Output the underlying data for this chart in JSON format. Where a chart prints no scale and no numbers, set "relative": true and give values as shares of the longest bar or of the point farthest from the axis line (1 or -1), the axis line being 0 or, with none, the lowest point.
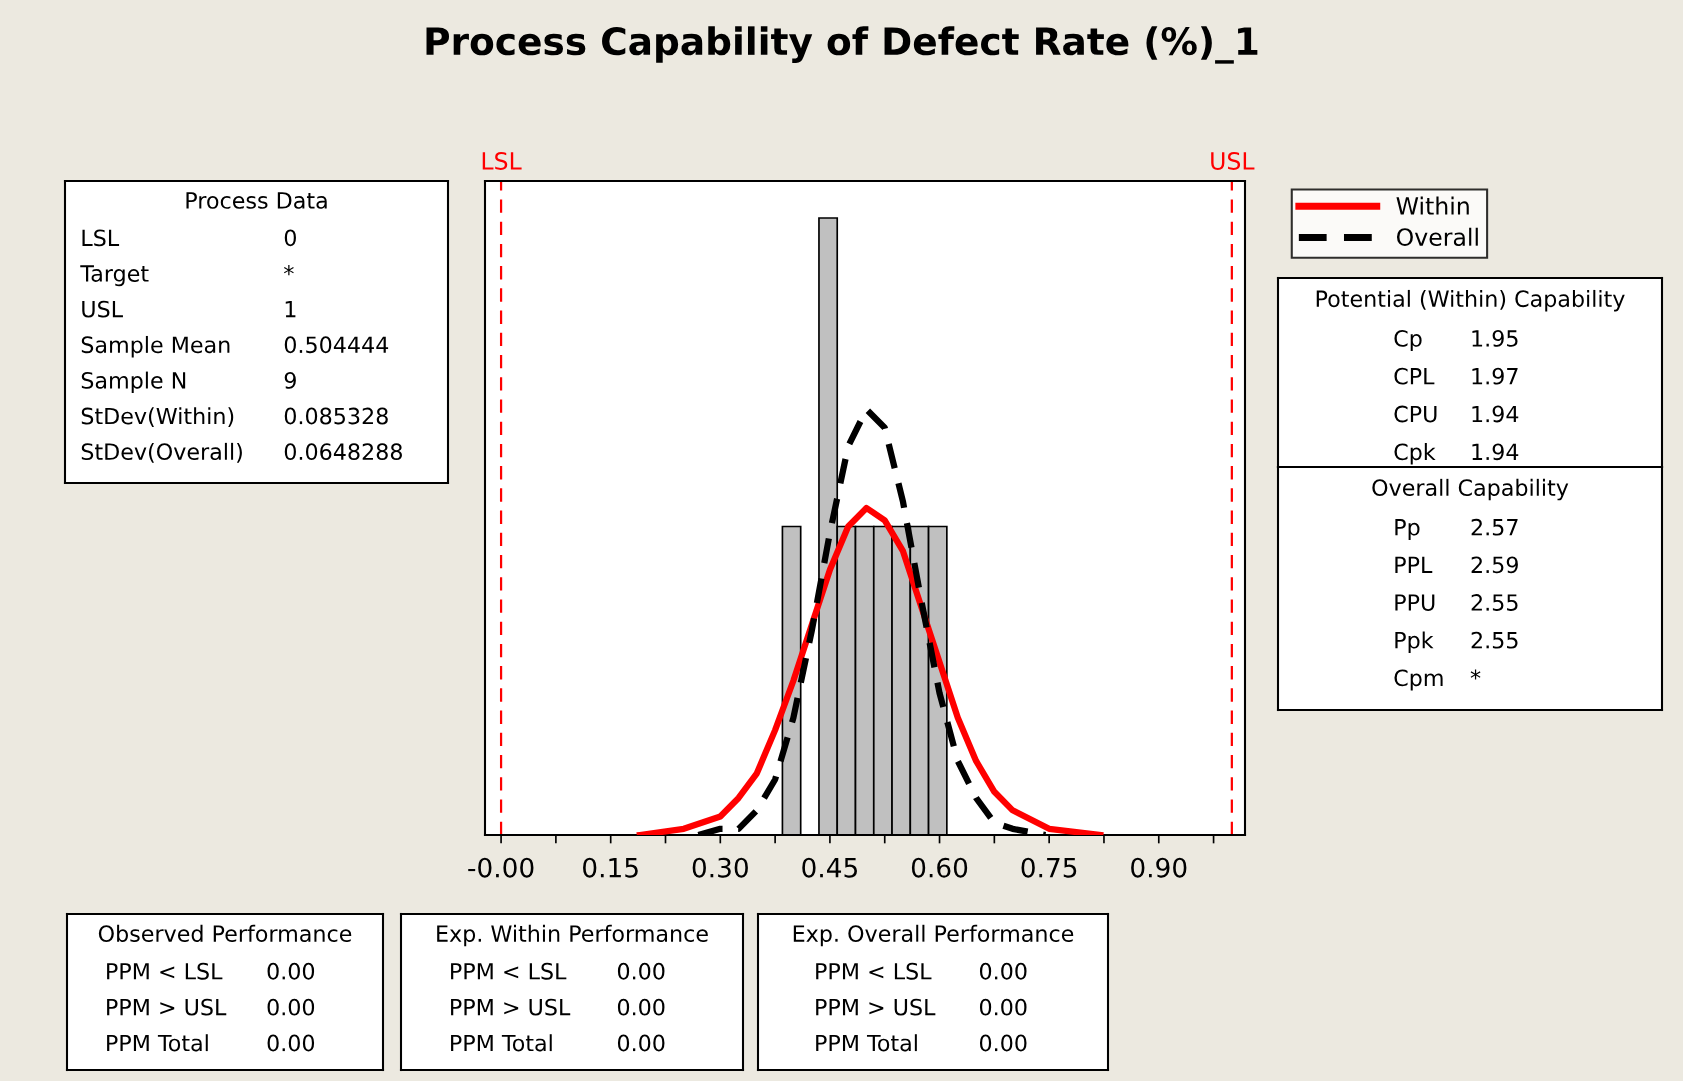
{
  "chart_data": [
    {
      "type": "histogram",
      "title": "Process Capability of Defect Rate (%)_1",
      "relative": true,
      "bins": [
        0.385,
        0.41,
        0.435,
        0.46,
        0.485,
        0.51,
        0.535,
        0.56,
        0.585,
        0.61
      ],
      "values": [
        0.5,
        0,
        1,
        0.5,
        0.5,
        0.5,
        0.5,
        0.5,
        0.5
      ],
      "color": "#c0c0c0",
      "series": [
        {
          "name": "Within",
          "type": "line",
          "color": "#ff0000",
          "line_style": "solid",
          "x": [
            0.19,
            0.25,
            0.3,
            0.325,
            0.35,
            0.375,
            0.4,
            0.425,
            0.45,
            0.475,
            0.5,
            0.525,
            0.55,
            0.575,
            0.6,
            0.625,
            0.65,
            0.675,
            0.7,
            0.75,
            0.82
          ],
          "values": [
            0.0,
            0.01,
            0.03,
            0.06,
            0.1,
            0.17,
            0.25,
            0.34,
            0.43,
            0.5,
            0.53,
            0.51,
            0.46,
            0.37,
            0.28,
            0.19,
            0.12,
            0.07,
            0.04,
            0.01,
            0.0
          ]
        },
        {
          "name": "Overall",
          "type": "line",
          "color": "#000000",
          "line_style": "dashed",
          "x": [
            0.27,
            0.3,
            0.325,
            0.35,
            0.375,
            0.4,
            0.425,
            0.45,
            0.475,
            0.5,
            0.525,
            0.55,
            0.575,
            0.6,
            0.625,
            0.65,
            0.675,
            0.7,
            0.745
          ],
          "values": [
            0.0,
            0.01,
            0.01,
            0.04,
            0.09,
            0.19,
            0.33,
            0.49,
            0.63,
            0.69,
            0.66,
            0.54,
            0.38,
            0.23,
            0.12,
            0.06,
            0.02,
            0.01,
            0.0
          ]
        }
      ],
      "xlim": [
        -0.022,
        1.018
      ],
      "xticks": [
        {
          "value": 0,
          "label": "-0.00"
        },
        {
          "value": 0.075,
          "label": null
        },
        0.15,
        {
          "value": 0.225,
          "label": null
        },
        {
          "value": 0.3,
          "label": "0.30"
        },
        {
          "value": 0.375,
          "label": null
        },
        0.45,
        {
          "value": 0.525,
          "label": null
        },
        {
          "value": 0.6,
          "label": "0.60"
        },
        {
          "value": 0.675,
          "label": null
        },
        0.75,
        {
          "value": 0.825,
          "label": null
        },
        {
          "value": 0.9,
          "label": "0.90"
        },
        {
          "value": 0.975,
          "label": null
        }
      ],
      "ref_lines": [
        {
          "axis": "x",
          "value": 0,
          "label": "LSL",
          "color": "#ff0000",
          "line_style": "dashed"
        },
        {
          "axis": "x",
          "value": 1,
          "label": "USL",
          "color": "#ff0000",
          "line_style": "dashed"
        }
      ],
      "legend": "top right",
      "grid": false
    },
    {
      "type": "other",
      "title": "Process Data",
      "annotations": [
        "LSL",
        "0",
        "Target",
        "*",
        "USL",
        "1",
        "Sample Mean",
        "0.504444",
        "Sample N",
        "9",
        "StDev(Within)",
        "0.085328",
        "StDev(Overall)",
        "0.0648288"
      ]
    },
    {
      "type": "other",
      "title": "Potential (Within) Capability",
      "annotations": [
        "Cp",
        "1.95",
        "CPL",
        "1.97",
        "CPU",
        "1.94",
        "Cpk",
        "1.94"
      ]
    },
    {
      "type": "other",
      "title": "Overall Capability",
      "annotations": [
        "Pp",
        "2.57",
        "PPL",
        "2.59",
        "PPU",
        "2.55",
        "Ppk",
        "2.55",
        "Cpm",
        "*"
      ]
    },
    {
      "type": "other",
      "title": "Observed Performance",
      "annotations": [
        "PPM < LSL",
        "0.00",
        "PPM > USL",
        "0.00",
        "PPM Total",
        "0.00"
      ]
    },
    {
      "type": "other",
      "title": "Exp. Within Performance",
      "annotations": [
        "PPM < LSL",
        "0.00",
        "PPM > USL",
        "0.00",
        "PPM Total",
        "0.00"
      ]
    },
    {
      "type": "other",
      "title": "Exp. Overall Performance",
      "annotations": [
        "PPM < LSL",
        "0.00",
        "PPM > USL",
        "0.00",
        "PPM Total",
        "0.00"
      ]
    }
  ]
}
